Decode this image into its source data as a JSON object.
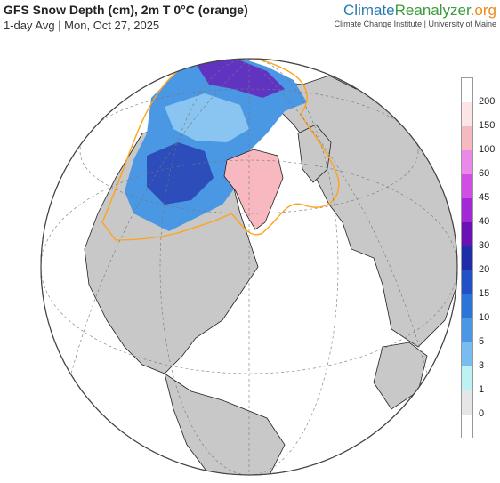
{
  "header": {
    "title": "GFS Snow Depth (cm), 2m T 0°C (orange)",
    "subtitle": "1-day Avg | Mon, Oct 27, 2025"
  },
  "brand": {
    "logo_part1": "Climate",
    "logo_part2": "Reanalyzer",
    "logo_part3": ".org",
    "tagline": "Climate Change Institute | University of Maine"
  },
  "legend": {
    "labels": [
      "200",
      "150",
      "100",
      "60",
      "45",
      "40",
      "30",
      "20",
      "15",
      "10",
      "5",
      "3",
      "1",
      "0"
    ],
    "colors": [
      "#ffffff",
      "#fce5e7",
      "#f6b9c0",
      "#e98ae8",
      "#d14ee4",
      "#a22ad6",
      "#6a12b5",
      "#1f2ea8",
      "#2250c8",
      "#2c74d8",
      "#4a98e4",
      "#79bdf0",
      "#bdf2f5",
      "#e6e6e6",
      "#ffffff"
    ]
  },
  "map": {
    "ocean_color": "#ffffff",
    "land_color": "#c8c8c8",
    "snow_light": "#4a98e4",
    "snow_deep": "#1f2ea8",
    "greenland_color": "#f7b8c0",
    "isotherm_color": "#ffa31a"
  }
}
